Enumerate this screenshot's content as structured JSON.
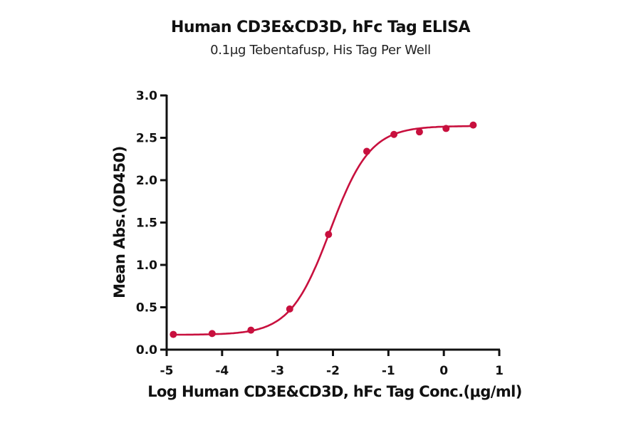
{
  "chart_data": {
    "type": "line",
    "title": "Human CD3E&CD3D, hFc Tag ELISA",
    "subtitle": "0.1μg Tebentafusp, His Tag Per Well",
    "xlabel": "Log Human CD3E&CD3D, hFc Tag Conc.(μg/ml)",
    "ylabel": "Mean Abs.(OD450)",
    "xlim": [
      -5,
      1
    ],
    "ylim": [
      0,
      3.0
    ],
    "xticks": [
      "-5",
      "-4",
      "-3",
      "-2",
      "-1",
      "0",
      "1"
    ],
    "yticks": [
      "0.0",
      "0.5",
      "1.0",
      "1.5",
      "2.0",
      "2.5",
      "3.0"
    ],
    "grid": false,
    "legend": null,
    "color": "#c8103e",
    "series": [
      {
        "name": "Mean Abs.(OD450)",
        "x": [
          -4.88,
          -4.18,
          -3.48,
          -2.78,
          -2.08,
          -1.39,
          -0.9,
          -0.44,
          0.04,
          0.53
        ],
        "values": [
          0.18,
          0.19,
          0.23,
          0.48,
          1.36,
          2.34,
          2.54,
          2.57,
          2.61,
          2.65
        ],
        "fit": "4-parameter logistic curve"
      }
    ]
  }
}
